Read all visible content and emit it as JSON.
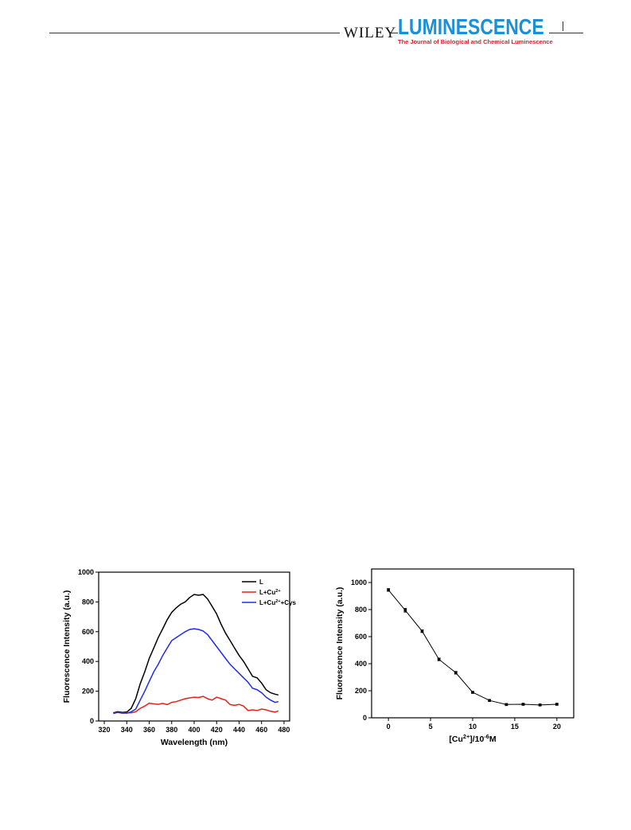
{
  "header": {
    "publisher": "WILEY",
    "journal": "LUMINESCENCE",
    "subtitle": "The Journal of Biological and Chemical Luminescence"
  },
  "chart_data": [
    {
      "type": "line",
      "xlabel": "Wavelength (nm)",
      "ylabel": "Fluorescence Intensity (a.u.)",
      "xlim": [
        315,
        485
      ],
      "ylim": [
        0,
        1000
      ],
      "xticks": [
        320,
        340,
        360,
        380,
        400,
        420,
        440,
        460,
        480
      ],
      "yticks": [
        0,
        200,
        400,
        600,
        800,
        1000
      ],
      "legend": "top-right",
      "x": [
        328,
        332,
        336,
        340,
        344,
        348,
        352,
        356,
        360,
        364,
        368,
        372,
        376,
        380,
        384,
        388,
        392,
        396,
        400,
        404,
        408,
        412,
        416,
        420,
        424,
        428,
        432,
        436,
        440,
        444,
        448,
        452,
        456,
        460,
        464,
        468,
        472,
        475
      ],
      "series": [
        {
          "name": "L",
          "color": "#000000",
          "values": [
            55,
            62,
            58,
            60,
            85,
            150,
            250,
            330,
            420,
            490,
            560,
            620,
            680,
            730,
            760,
            785,
            800,
            830,
            850,
            845,
            850,
            820,
            770,
            720,
            650,
            590,
            540,
            490,
            440,
            400,
            350,
            300,
            290,
            255,
            210,
            190,
            180,
            175
          ]
        },
        {
          "name": "L+Cu²⁺",
          "color": "#e3241b",
          "values": [
            52,
            58,
            52,
            55,
            55,
            62,
            85,
            100,
            120,
            115,
            112,
            118,
            110,
            125,
            130,
            140,
            150,
            155,
            160,
            158,
            165,
            150,
            140,
            160,
            150,
            140,
            110,
            105,
            112,
            100,
            70,
            75,
            70,
            80,
            75,
            65,
            60,
            68
          ]
        },
        {
          "name": "L+Cu²⁺+Cys",
          "color": "#1f2cf0",
          "values": [
            50,
            58,
            54,
            52,
            62,
            80,
            140,
            200,
            265,
            330,
            380,
            440,
            490,
            540,
            560,
            580,
            600,
            615,
            620,
            615,
            605,
            580,
            540,
            500,
            460,
            420,
            380,
            350,
            320,
            290,
            260,
            220,
            210,
            190,
            160,
            140,
            125,
            130
          ]
        }
      ]
    },
    {
      "type": "line",
      "xlabel": "[Cu²⁺]/10⁻⁶M",
      "ylabel": "Fluorescence Intensity (a.u.)",
      "xlim": [
        -2,
        22
      ],
      "ylim": [
        0,
        1100
      ],
      "xticks": [
        0,
        5,
        10,
        15,
        20
      ],
      "yticks": [
        0,
        200,
        400,
        600,
        800,
        1000
      ],
      "series": [
        {
          "color": "#000000",
          "x": [
            0,
            2,
            4,
            6,
            8,
            10,
            12,
            14,
            16,
            18,
            20
          ],
          "values": [
            945,
            795,
            640,
            432,
            333,
            188,
            128,
            98,
            100,
            95,
            100
          ],
          "errors": [
            10,
            14,
            10,
            10,
            10,
            6,
            8,
            5,
            5,
            5,
            5
          ]
        }
      ]
    }
  ]
}
